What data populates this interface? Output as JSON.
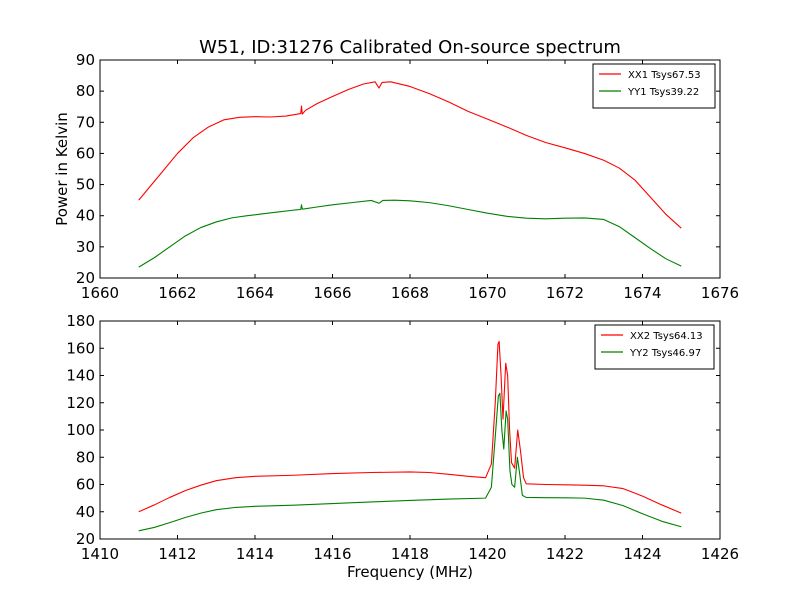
{
  "chart_data": [
    {
      "type": "line",
      "title": "W51, ID:31276 Calibrated On-source spectrum",
      "xlabel": "",
      "ylabel": "Power in Kelvin",
      "xlim": [
        1660,
        1676
      ],
      "ylim": [
        20,
        90
      ],
      "xticks": [
        "1660",
        "1662",
        "1664",
        "1666",
        "1668",
        "1670",
        "1672",
        "1674",
        "1676"
      ],
      "yticks": [
        "20",
        "30",
        "40",
        "50",
        "60",
        "70",
        "80",
        "90"
      ],
      "grid": false,
      "legend": "top-right",
      "series": [
        {
          "name": "XX1 Tsys67.53",
          "color": "#ff0000",
          "points": [
            [
              1661.0,
              45.0
            ],
            [
              1661.3,
              49.5
            ],
            [
              1661.6,
              54.0
            ],
            [
              1662.0,
              60.0
            ],
            [
              1662.4,
              65.0
            ],
            [
              1662.8,
              68.5
            ],
            [
              1663.2,
              70.8
            ],
            [
              1663.6,
              71.6
            ],
            [
              1664.0,
              71.8
            ],
            [
              1664.4,
              71.7
            ],
            [
              1664.8,
              72.0
            ],
            [
              1665.18,
              72.8
            ],
            [
              1665.2,
              75.2
            ],
            [
              1665.22,
              72.6
            ],
            [
              1665.3,
              73.8
            ],
            [
              1665.6,
              76.0
            ],
            [
              1666.0,
              78.3
            ],
            [
              1666.4,
              80.5
            ],
            [
              1666.8,
              82.3
            ],
            [
              1667.1,
              83.0
            ],
            [
              1667.2,
              81.0
            ],
            [
              1667.28,
              82.8
            ],
            [
              1667.5,
              83.0
            ],
            [
              1668.0,
              81.5
            ],
            [
              1668.5,
              79.2
            ],
            [
              1669.0,
              76.5
            ],
            [
              1669.5,
              73.5
            ],
            [
              1670.0,
              71.0
            ],
            [
              1670.5,
              68.5
            ],
            [
              1671.0,
              65.8
            ],
            [
              1671.5,
              63.5
            ],
            [
              1672.0,
              61.8
            ],
            [
              1672.5,
              60.0
            ],
            [
              1673.0,
              57.8
            ],
            [
              1673.4,
              55.3
            ],
            [
              1673.8,
              51.5
            ],
            [
              1674.2,
              46.0
            ],
            [
              1674.6,
              40.5
            ],
            [
              1675.0,
              36.0
            ]
          ]
        },
        {
          "name": "YY1 Tsys39.22",
          "color": "#008000",
          "points": [
            [
              1661.0,
              23.5
            ],
            [
              1661.4,
              26.5
            ],
            [
              1661.8,
              30.0
            ],
            [
              1662.2,
              33.5
            ],
            [
              1662.6,
              36.2
            ],
            [
              1663.0,
              38.0
            ],
            [
              1663.4,
              39.3
            ],
            [
              1663.8,
              40.0
            ],
            [
              1664.2,
              40.6
            ],
            [
              1664.6,
              41.2
            ],
            [
              1665.0,
              41.8
            ],
            [
              1665.18,
              42.0
            ],
            [
              1665.2,
              43.5
            ],
            [
              1665.22,
              42.1
            ],
            [
              1665.6,
              42.8
            ],
            [
              1666.0,
              43.5
            ],
            [
              1666.5,
              44.2
            ],
            [
              1667.0,
              44.9
            ],
            [
              1667.2,
              44.0
            ],
            [
              1667.3,
              44.9
            ],
            [
              1667.6,
              45.0
            ],
            [
              1668.0,
              44.8
            ],
            [
              1668.5,
              44.2
            ],
            [
              1669.0,
              43.2
            ],
            [
              1669.5,
              42.0
            ],
            [
              1670.0,
              40.8
            ],
            [
              1670.5,
              39.8
            ],
            [
              1671.0,
              39.2
            ],
            [
              1671.5,
              39.0
            ],
            [
              1672.0,
              39.2
            ],
            [
              1672.5,
              39.3
            ],
            [
              1673.0,
              38.8
            ],
            [
              1673.4,
              36.5
            ],
            [
              1673.8,
              33.0
            ],
            [
              1674.2,
              29.5
            ],
            [
              1674.6,
              26.2
            ],
            [
              1675.0,
              23.8
            ]
          ]
        }
      ]
    },
    {
      "type": "line",
      "title": "",
      "xlabel": "Frequency (MHz)",
      "ylabel": "",
      "xlim": [
        1410,
        1426
      ],
      "ylim": [
        20,
        180
      ],
      "xticks": [
        "1410",
        "1412",
        "1414",
        "1416",
        "1418",
        "1420",
        "1422",
        "1424",
        "1426"
      ],
      "yticks": [
        "20",
        "40",
        "60",
        "80",
        "100",
        "120",
        "140",
        "160",
        "180"
      ],
      "grid": false,
      "legend": "top-right",
      "series": [
        {
          "name": "XX2 Tsys64.13",
          "color": "#ff0000",
          "points": [
            [
              1411.0,
              40.0
            ],
            [
              1411.4,
              45.0
            ],
            [
              1411.8,
              50.5
            ],
            [
              1412.2,
              55.5
            ],
            [
              1412.6,
              59.5
            ],
            [
              1413.0,
              62.8
            ],
            [
              1413.5,
              65.0
            ],
            [
              1414.0,
              66.0
            ],
            [
              1415.0,
              66.8
            ],
            [
              1416.0,
              68.0
            ],
            [
              1417.0,
              68.8
            ],
            [
              1418.0,
              69.2
            ],
            [
              1418.5,
              68.8
            ],
            [
              1419.0,
              67.5
            ],
            [
              1419.5,
              66.0
            ],
            [
              1419.95,
              65.0
            ],
            [
              1420.1,
              75.0
            ],
            [
              1420.2,
              120.0
            ],
            [
              1420.27,
              163.0
            ],
            [
              1420.3,
              165.0
            ],
            [
              1420.35,
              140.0
            ],
            [
              1420.4,
              108.0
            ],
            [
              1420.47,
              149.0
            ],
            [
              1420.52,
              140.0
            ],
            [
              1420.57,
              100.0
            ],
            [
              1420.62,
              76.0
            ],
            [
              1420.7,
              72.0
            ],
            [
              1420.78,
              100.0
            ],
            [
              1420.85,
              85.0
            ],
            [
              1420.93,
              65.0
            ],
            [
              1421.0,
              60.5
            ],
            [
              1421.5,
              60.0
            ],
            [
              1422.0,
              59.8
            ],
            [
              1422.5,
              59.5
            ],
            [
              1423.0,
              59.0
            ],
            [
              1423.5,
              57.0
            ],
            [
              1424.0,
              51.5
            ],
            [
              1424.5,
              45.0
            ],
            [
              1425.0,
              39.0
            ]
          ]
        },
        {
          "name": "YY2 Tsys46.97",
          "color": "#008000",
          "points": [
            [
              1411.0,
              26.0
            ],
            [
              1411.4,
              28.5
            ],
            [
              1411.8,
              32.0
            ],
            [
              1412.2,
              35.8
            ],
            [
              1412.6,
              39.0
            ],
            [
              1413.0,
              41.5
            ],
            [
              1413.5,
              43.2
            ],
            [
              1414.0,
              44.0
            ],
            [
              1415.0,
              44.8
            ],
            [
              1416.0,
              46.0
            ],
            [
              1417.0,
              47.2
            ],
            [
              1418.0,
              48.3
            ],
            [
              1419.0,
              49.3
            ],
            [
              1419.95,
              50.0
            ],
            [
              1420.1,
              58.0
            ],
            [
              1420.2,
              95.0
            ],
            [
              1420.28,
              125.0
            ],
            [
              1420.32,
              127.0
            ],
            [
              1420.37,
              100.0
            ],
            [
              1420.42,
              86.0
            ],
            [
              1420.48,
              114.0
            ],
            [
              1420.52,
              108.0
            ],
            [
              1420.58,
              70.0
            ],
            [
              1420.63,
              60.0
            ],
            [
              1420.7,
              58.0
            ],
            [
              1420.77,
              80.0
            ],
            [
              1420.83,
              68.0
            ],
            [
              1420.9,
              52.0
            ],
            [
              1421.0,
              50.5
            ],
            [
              1421.5,
              50.3
            ],
            [
              1422.0,
              50.2
            ],
            [
              1422.5,
              50.0
            ],
            [
              1423.0,
              48.5
            ],
            [
              1423.5,
              44.5
            ],
            [
              1424.0,
              38.5
            ],
            [
              1424.5,
              33.0
            ],
            [
              1425.0,
              29.0
            ]
          ]
        }
      ]
    }
  ]
}
